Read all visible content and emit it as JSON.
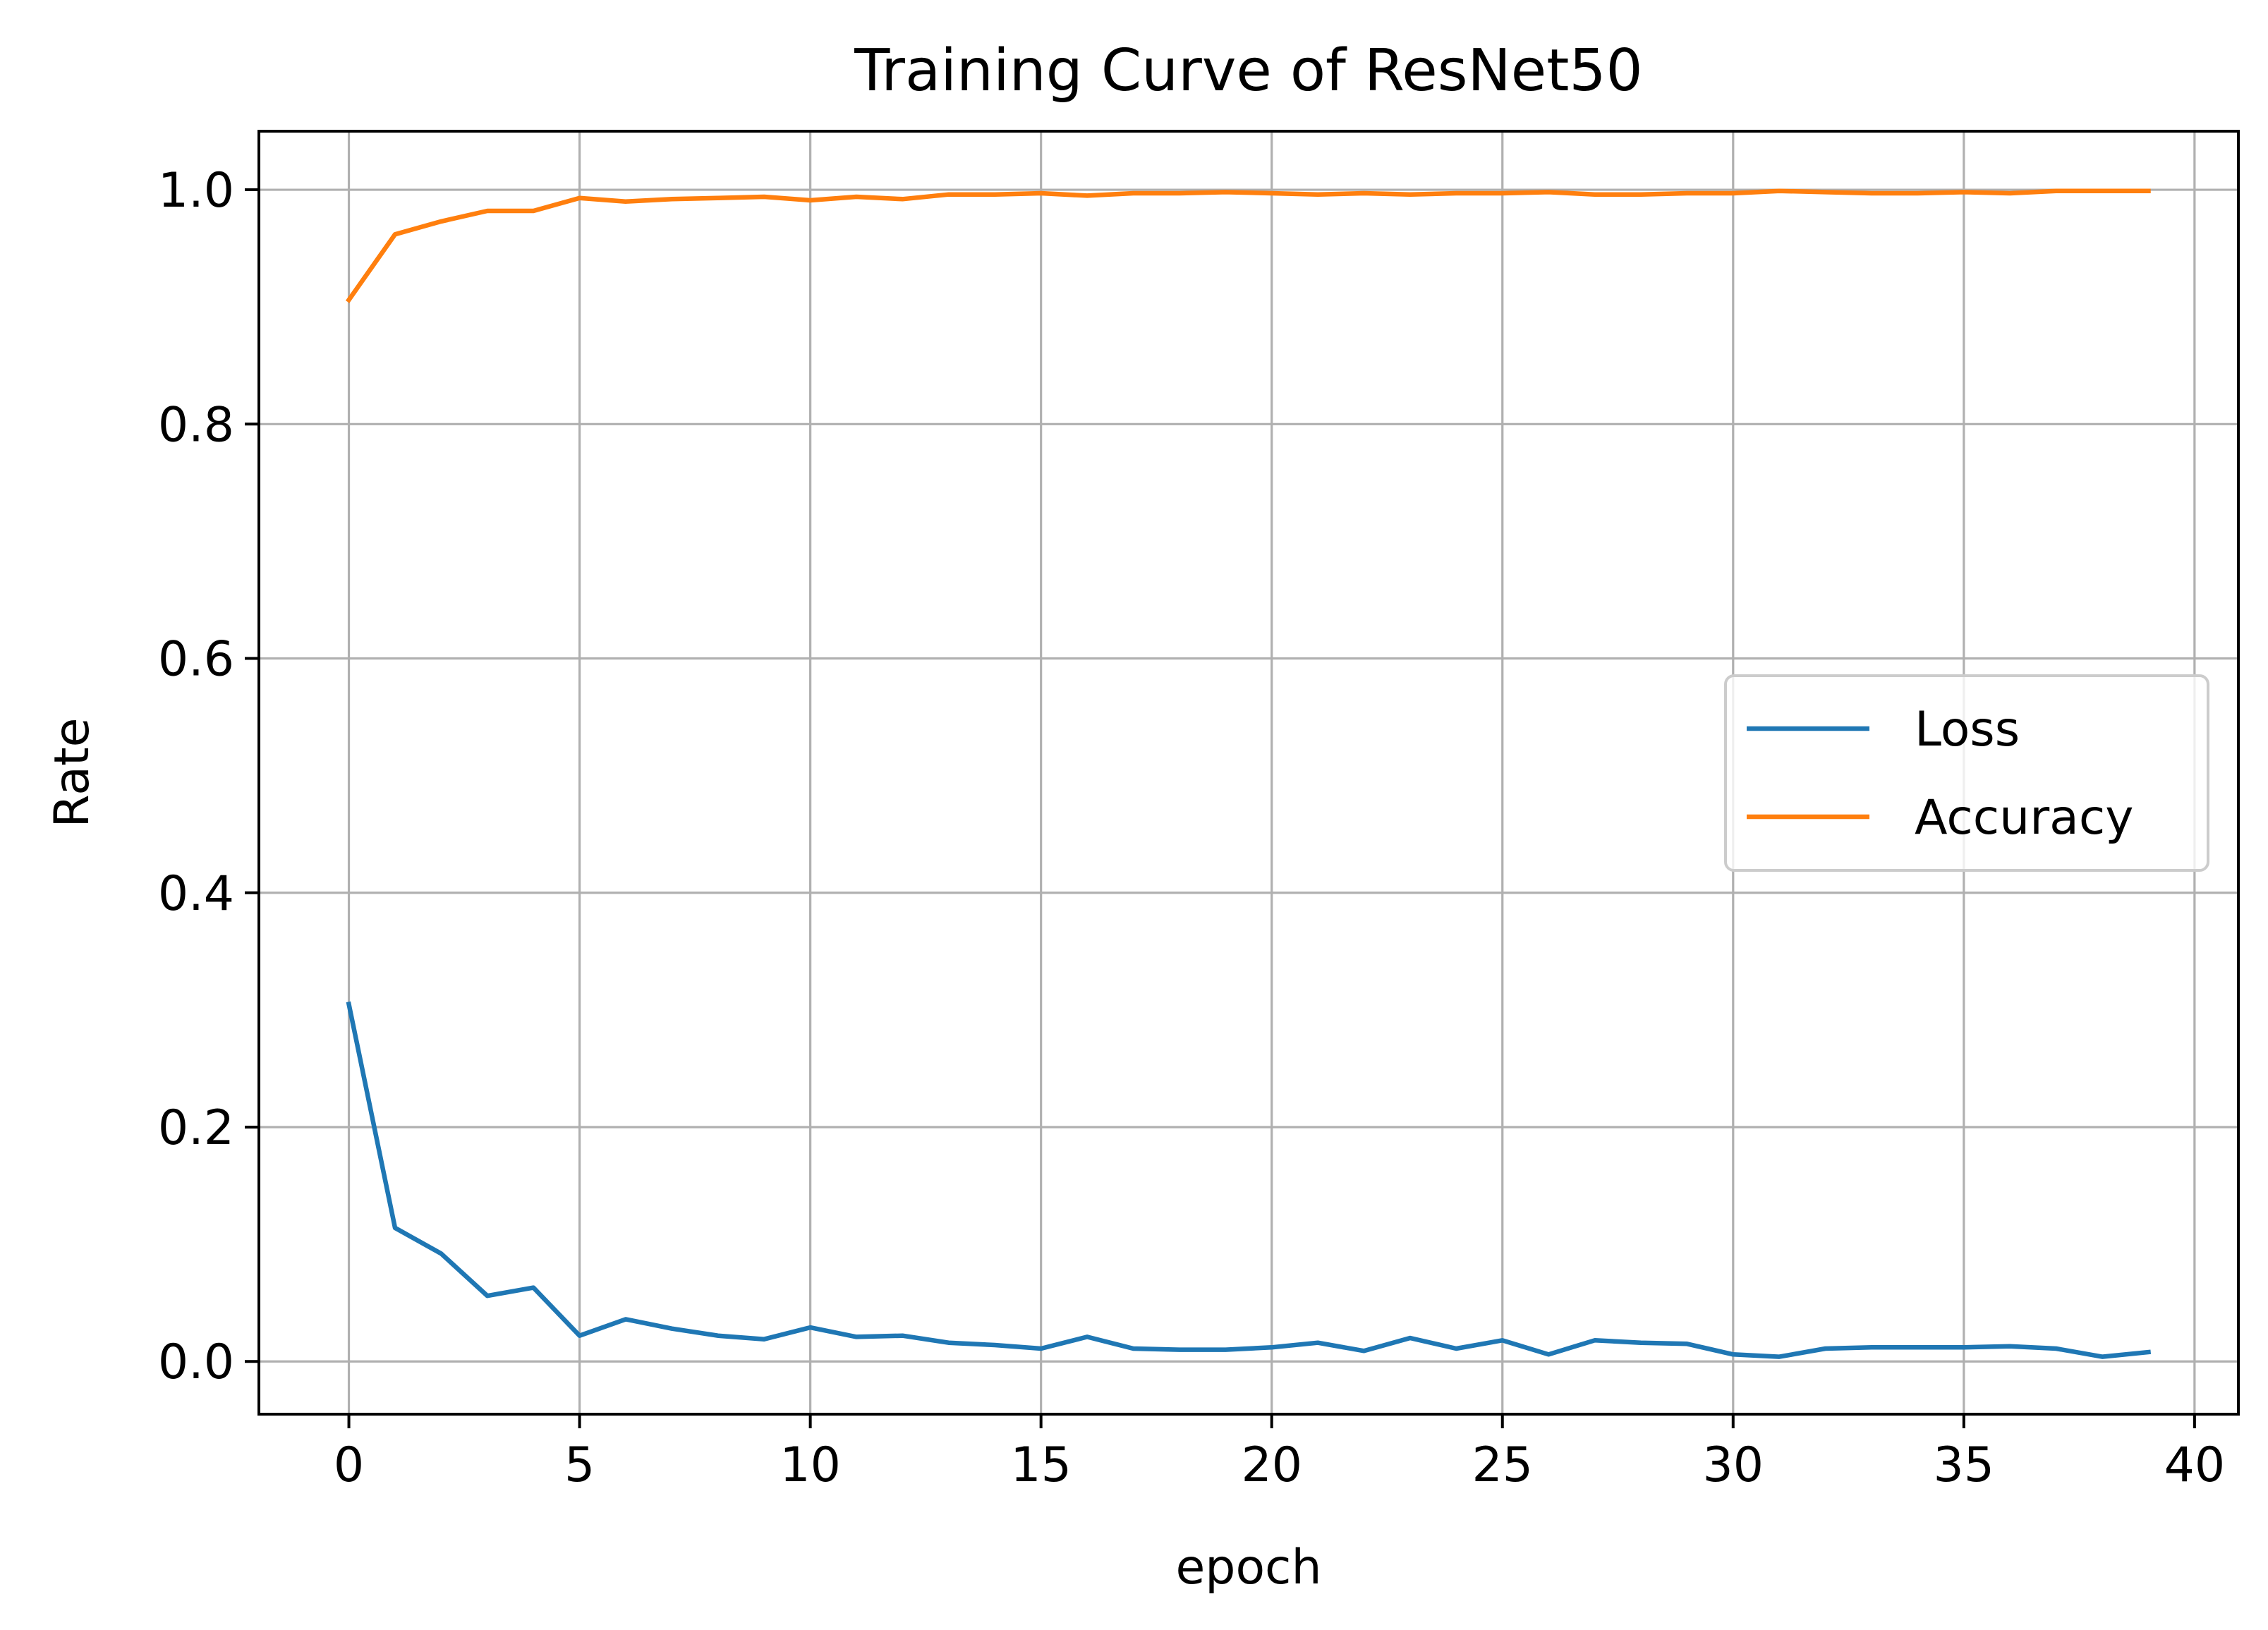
{
  "chart_data": {
    "type": "line",
    "title": "Training Curve of ResNet50",
    "xlabel": "epoch",
    "ylabel": "Rate",
    "xlim": [
      -1.95,
      40.95
    ],
    "ylim": [
      -0.045,
      1.05
    ],
    "xticks": [
      0,
      5,
      10,
      15,
      20,
      25,
      30,
      35,
      40
    ],
    "yticks": [
      0.0,
      0.2,
      0.4,
      0.6,
      0.8,
      1.0
    ],
    "xtick_labels": [
      "0",
      "5",
      "10",
      "15",
      "20",
      "25",
      "30",
      "35",
      "40"
    ],
    "ytick_labels": [
      "0.0",
      "0.2",
      "0.4",
      "0.6",
      "0.8",
      "1.0"
    ],
    "grid": true,
    "legend_position": "center-right",
    "x": [
      0,
      1,
      2,
      3,
      4,
      5,
      6,
      7,
      8,
      9,
      10,
      11,
      12,
      13,
      14,
      15,
      16,
      17,
      18,
      19,
      20,
      21,
      22,
      23,
      24,
      25,
      26,
      27,
      28,
      29,
      30,
      31,
      32,
      33,
      34,
      35,
      36,
      37,
      38,
      39
    ],
    "series": [
      {
        "name": "Loss",
        "color": "#1f77b4",
        "values": [
          0.305,
          0.114,
          0.092,
          0.056,
          0.063,
          0.022,
          0.036,
          0.028,
          0.022,
          0.019,
          0.029,
          0.021,
          0.022,
          0.016,
          0.014,
          0.011,
          0.021,
          0.011,
          0.01,
          0.01,
          0.012,
          0.016,
          0.009,
          0.02,
          0.011,
          0.018,
          0.006,
          0.018,
          0.016,
          0.015,
          0.006,
          0.004,
          0.011,
          0.012,
          0.012,
          0.012,
          0.013,
          0.011,
          0.004,
          0.008
        ]
      },
      {
        "name": "Accuracy",
        "color": "#ff7f0e",
        "values": [
          0.906,
          0.962,
          0.973,
          0.982,
          0.982,
          0.993,
          0.99,
          0.992,
          0.993,
          0.994,
          0.991,
          0.994,
          0.992,
          0.996,
          0.996,
          0.997,
          0.995,
          0.997,
          0.997,
          0.998,
          0.997,
          0.996,
          0.997,
          0.996,
          0.997,
          0.997,
          0.998,
          0.996,
          0.996,
          0.997,
          0.997,
          0.999,
          0.998,
          0.997,
          0.997,
          0.998,
          0.997,
          0.999,
          0.999,
          0.999
        ]
      }
    ]
  }
}
